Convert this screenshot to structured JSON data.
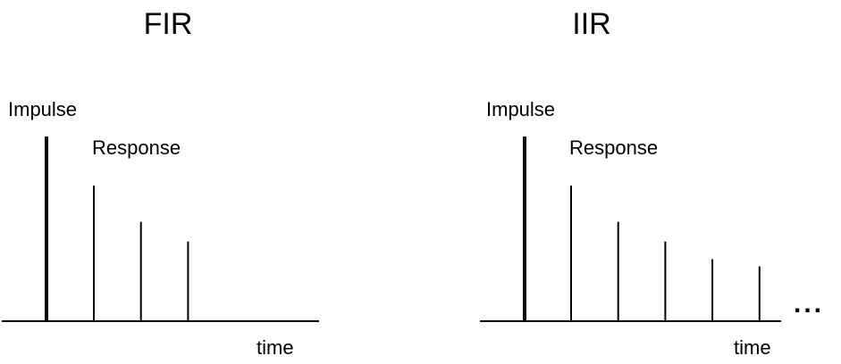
{
  "panels": [
    {
      "title": "FIR",
      "impulse_label": "Impulse",
      "response_label": "Response",
      "time_label": "time",
      "response_levels": [
        1.0,
        0.733,
        0.587
      ],
      "continuation": ""
    },
    {
      "title": "IIR",
      "impulse_label": "Impulse",
      "response_label": "Response",
      "time_label": "time",
      "response_levels": [
        1.0,
        0.733,
        0.587,
        0.457,
        0.404
      ],
      "continuation": "..."
    }
  ],
  "colors": {
    "stroke": "#000000",
    "background": "#ffffff"
  }
}
